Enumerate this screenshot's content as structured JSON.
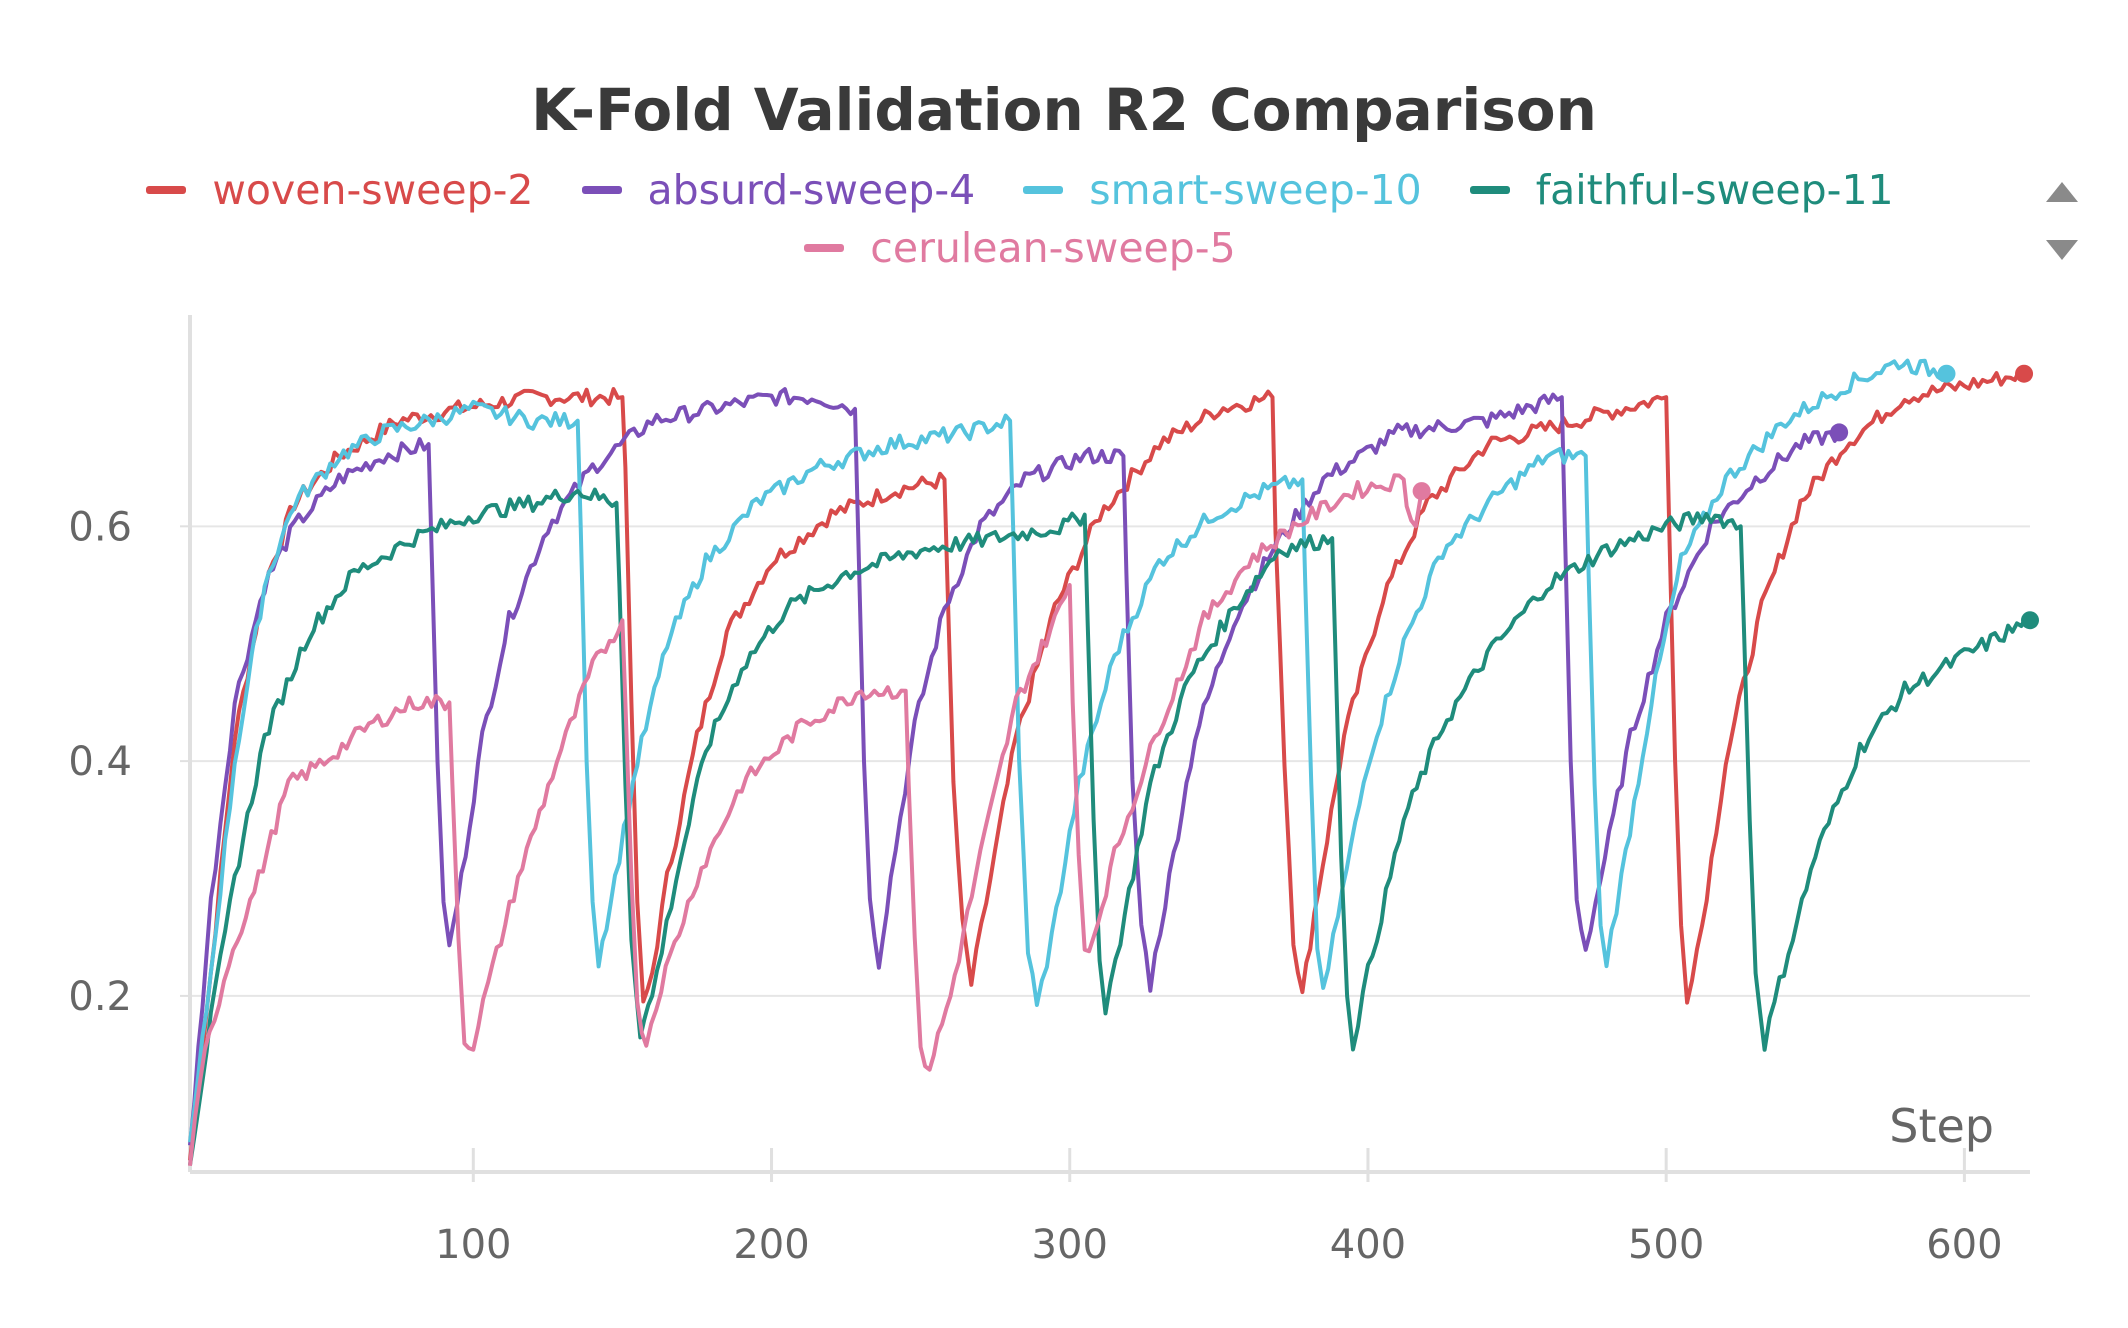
{
  "title": "K-Fold Validation R2 Comparison",
  "legend": [
    {
      "name": "woven-sweep-2",
      "color": "#d84a4a"
    },
    {
      "name": "absurd-sweep-4",
      "color": "#7b4fb8"
    },
    {
      "name": "smart-sweep-10",
      "color": "#55c3dd"
    },
    {
      "name": "faithful-sweep-11",
      "color": "#1f8c7c"
    },
    {
      "name": "cerulean-sweep-5",
      "color": "#e07aa0"
    }
  ],
  "chart_data": {
    "type": "line",
    "title": "K-Fold Validation R2 Comparison",
    "xlabel": "Step",
    "ylabel": "",
    "xlim": [
      5,
      622
    ],
    "ylim": [
      0.05,
      0.78
    ],
    "x_ticks": [
      100,
      200,
      300,
      400,
      500,
      600
    ],
    "y_ticks": [
      0.2,
      0.4,
      0.6
    ],
    "x_tick_labels": [
      "100",
      "200",
      "300",
      "400",
      "500",
      "600"
    ],
    "y_tick_labels": [
      "0.2",
      "0.4",
      "0.6"
    ],
    "grid": true,
    "legend_position": "top",
    "series": [
      {
        "name": "woven-sweep-2",
        "color": "#d84a4a",
        "end_marker": true,
        "points": [
          [
            5,
            0.06
          ],
          [
            12,
            0.22
          ],
          [
            20,
            0.42
          ],
          [
            30,
            0.55
          ],
          [
            40,
            0.62
          ],
          [
            55,
            0.66
          ],
          [
            75,
            0.69
          ],
          [
            95,
            0.7
          ],
          [
            120,
            0.71
          ],
          [
            150,
            0.71
          ],
          [
            151,
            0.65
          ],
          [
            153,
            0.45
          ],
          [
            155,
            0.28
          ],
          [
            157,
            0.19
          ],
          [
            160,
            0.22
          ],
          [
            165,
            0.3
          ],
          [
            175,
            0.42
          ],
          [
            185,
            0.51
          ],
          [
            200,
            0.57
          ],
          [
            220,
            0.61
          ],
          [
            240,
            0.63
          ],
          [
            258,
            0.64
          ],
          [
            259,
            0.55
          ],
          [
            261,
            0.38
          ],
          [
            264,
            0.26
          ],
          [
            267,
            0.21
          ],
          [
            272,
            0.28
          ],
          [
            282,
            0.42
          ],
          [
            295,
            0.53
          ],
          [
            310,
            0.61
          ],
          [
            330,
            0.67
          ],
          [
            350,
            0.7
          ],
          [
            368,
            0.71
          ],
          [
            369,
            0.6
          ],
          [
            372,
            0.4
          ],
          [
            375,
            0.25
          ],
          [
            378,
            0.2
          ],
          [
            382,
            0.27
          ],
          [
            392,
            0.42
          ],
          [
            405,
            0.54
          ],
          [
            420,
            0.62
          ],
          [
            440,
            0.67
          ],
          [
            470,
            0.69
          ],
          [
            500,
            0.71
          ],
          [
            501,
            0.6
          ],
          [
            503,
            0.4
          ],
          [
            505,
            0.26
          ],
          [
            507,
            0.2
          ],
          [
            512,
            0.26
          ],
          [
            520,
            0.4
          ],
          [
            532,
            0.53
          ],
          [
            545,
            0.62
          ],
          [
            560,
            0.67
          ],
          [
            580,
            0.71
          ],
          [
            600,
            0.72
          ],
          [
            620,
            0.73
          ]
        ]
      },
      {
        "name": "absurd-sweep-4",
        "color": "#7b4fb8",
        "end_marker": true,
        "points": [
          [
            5,
            0.07
          ],
          [
            12,
            0.28
          ],
          [
            20,
            0.45
          ],
          [
            30,
            0.55
          ],
          [
            40,
            0.6
          ],
          [
            55,
            0.64
          ],
          [
            70,
            0.66
          ],
          [
            85,
            0.67
          ],
          [
            86,
            0.58
          ],
          [
            88,
            0.4
          ],
          [
            90,
            0.28
          ],
          [
            92,
            0.24
          ],
          [
            96,
            0.3
          ],
          [
            103,
            0.42
          ],
          [
            112,
            0.52
          ],
          [
            125,
            0.6
          ],
          [
            140,
            0.65
          ],
          [
            160,
            0.69
          ],
          [
            180,
            0.7
          ],
          [
            200,
            0.71
          ],
          [
            215,
            0.71
          ],
          [
            228,
            0.7
          ],
          [
            229,
            0.6
          ],
          [
            231,
            0.4
          ],
          [
            233,
            0.28
          ],
          [
            236,
            0.23
          ],
          [
            240,
            0.3
          ],
          [
            248,
            0.43
          ],
          [
            258,
            0.53
          ],
          [
            270,
            0.6
          ],
          [
            285,
            0.64
          ],
          [
            305,
            0.66
          ],
          [
            318,
            0.66
          ],
          [
            319,
            0.56
          ],
          [
            321,
            0.38
          ],
          [
            324,
            0.26
          ],
          [
            327,
            0.21
          ],
          [
            332,
            0.28
          ],
          [
            342,
            0.42
          ],
          [
            355,
            0.52
          ],
          [
            368,
            0.58
          ],
          [
            385,
            0.64
          ],
          [
            410,
            0.68
          ],
          [
            440,
            0.69
          ],
          [
            465,
            0.71
          ],
          [
            466,
            0.6
          ],
          [
            468,
            0.4
          ],
          [
            470,
            0.28
          ],
          [
            473,
            0.24
          ],
          [
            478,
            0.3
          ],
          [
            488,
            0.42
          ],
          [
            500,
            0.52
          ],
          [
            515,
            0.6
          ],
          [
            530,
            0.64
          ],
          [
            545,
            0.67
          ],
          [
            558,
            0.68
          ]
        ]
      },
      {
        "name": "smart-sweep-10",
        "color": "#55c3dd",
        "end_marker": true,
        "points": [
          [
            5,
            0.07
          ],
          [
            12,
            0.22
          ],
          [
            20,
            0.4
          ],
          [
            30,
            0.55
          ],
          [
            40,
            0.62
          ],
          [
            55,
            0.66
          ],
          [
            70,
            0.68
          ],
          [
            85,
            0.69
          ],
          [
            100,
            0.7
          ],
          [
            120,
            0.69
          ],
          [
            135,
            0.69
          ],
          [
            136,
            0.6
          ],
          [
            138,
            0.4
          ],
          [
            140,
            0.28
          ],
          [
            142,
            0.23
          ],
          [
            146,
            0.28
          ],
          [
            155,
            0.4
          ],
          [
            165,
            0.5
          ],
          [
            178,
            0.57
          ],
          [
            195,
            0.62
          ],
          [
            215,
            0.65
          ],
          [
            240,
            0.67
          ],
          [
            265,
            0.68
          ],
          [
            280,
            0.69
          ],
          [
            281,
            0.6
          ],
          [
            283,
            0.4
          ],
          [
            286,
            0.24
          ],
          [
            289,
            0.19
          ],
          [
            294,
            0.25
          ],
          [
            303,
            0.38
          ],
          [
            315,
            0.49
          ],
          [
            330,
            0.57
          ],
          [
            348,
            0.61
          ],
          [
            365,
            0.63
          ],
          [
            378,
            0.64
          ],
          [
            379,
            0.55
          ],
          [
            381,
            0.38
          ],
          [
            383,
            0.24
          ],
          [
            385,
            0.2
          ],
          [
            390,
            0.27
          ],
          [
            400,
            0.4
          ],
          [
            412,
            0.5
          ],
          [
            425,
            0.58
          ],
          [
            445,
            0.63
          ],
          [
            460,
            0.66
          ],
          [
            473,
            0.66
          ],
          [
            474,
            0.56
          ],
          [
            476,
            0.38
          ],
          [
            478,
            0.26
          ],
          [
            480,
            0.23
          ],
          [
            485,
            0.3
          ],
          [
            495,
            0.45
          ],
          [
            505,
            0.57
          ],
          [
            520,
            0.64
          ],
          [
            540,
            0.69
          ],
          [
            560,
            0.72
          ],
          [
            578,
            0.74
          ],
          [
            594,
            0.73
          ]
        ]
      },
      {
        "name": "faithful-sweep-11",
        "color": "#1f8c7c",
        "end_marker": true,
        "points": [
          [
            5,
            0.06
          ],
          [
            12,
            0.18
          ],
          [
            20,
            0.3
          ],
          [
            30,
            0.42
          ],
          [
            45,
            0.51
          ],
          [
            60,
            0.56
          ],
          [
            80,
            0.59
          ],
          [
            100,
            0.61
          ],
          [
            120,
            0.62
          ],
          [
            135,
            0.63
          ],
          [
            148,
            0.62
          ],
          [
            149,
            0.55
          ],
          [
            151,
            0.38
          ],
          [
            153,
            0.25
          ],
          [
            156,
            0.17
          ],
          [
            160,
            0.2
          ],
          [
            168,
            0.3
          ],
          [
            178,
            0.41
          ],
          [
            190,
            0.48
          ],
          [
            205,
            0.53
          ],
          [
            225,
            0.56
          ],
          [
            250,
            0.58
          ],
          [
            275,
            0.59
          ],
          [
            298,
            0.6
          ],
          [
            305,
            0.61
          ],
          [
            306,
            0.52
          ],
          [
            308,
            0.35
          ],
          [
            310,
            0.23
          ],
          [
            312,
            0.19
          ],
          [
            317,
            0.25
          ],
          [
            327,
            0.38
          ],
          [
            340,
            0.47
          ],
          [
            355,
            0.53
          ],
          [
            370,
            0.58
          ],
          [
            388,
            0.59
          ],
          [
            389,
            0.5
          ],
          [
            391,
            0.32
          ],
          [
            393,
            0.2
          ],
          [
            395,
            0.16
          ],
          [
            400,
            0.22
          ],
          [
            412,
            0.35
          ],
          [
            425,
            0.43
          ],
          [
            440,
            0.49
          ],
          [
            460,
            0.55
          ],
          [
            480,
            0.58
          ],
          [
            500,
            0.6
          ],
          [
            515,
            0.61
          ],
          [
            525,
            0.6
          ],
          [
            526,
            0.52
          ],
          [
            528,
            0.35
          ],
          [
            530,
            0.22
          ],
          [
            533,
            0.16
          ],
          [
            538,
            0.21
          ],
          [
            550,
            0.32
          ],
          [
            565,
            0.41
          ],
          [
            580,
            0.46
          ],
          [
            600,
            0.49
          ],
          [
            622,
            0.52
          ]
        ]
      },
      {
        "name": "cerulean-sweep-5",
        "color": "#e07aa0",
        "end_marker": true,
        "points": [
          [
            5,
            0.06
          ],
          [
            10,
            0.15
          ],
          [
            18,
            0.23
          ],
          [
            28,
            0.3
          ],
          [
            38,
            0.38
          ],
          [
            50,
            0.4
          ],
          [
            65,
            0.43
          ],
          [
            80,
            0.45
          ],
          [
            92,
            0.45
          ],
          [
            93,
            0.38
          ],
          [
            95,
            0.25
          ],
          [
            97,
            0.16
          ],
          [
            100,
            0.16
          ],
          [
            105,
            0.21
          ],
          [
            115,
            0.3
          ],
          [
            128,
            0.4
          ],
          [
            140,
            0.48
          ],
          [
            150,
            0.52
          ],
          [
            151,
            0.45
          ],
          [
            153,
            0.3
          ],
          [
            155,
            0.19
          ],
          [
            158,
            0.16
          ],
          [
            163,
            0.21
          ],
          [
            175,
            0.3
          ],
          [
            190,
            0.38
          ],
          [
            210,
            0.43
          ],
          [
            230,
            0.46
          ],
          [
            245,
            0.46
          ],
          [
            246,
            0.38
          ],
          [
            248,
            0.25
          ],
          [
            250,
            0.15
          ],
          [
            253,
            0.14
          ],
          [
            260,
            0.2
          ],
          [
            270,
            0.32
          ],
          [
            282,
            0.45
          ],
          [
            295,
            0.52
          ],
          [
            300,
            0.55
          ],
          [
            301,
            0.45
          ],
          [
            303,
            0.32
          ],
          [
            305,
            0.24
          ],
          [
            308,
            0.25
          ],
          [
            315,
            0.32
          ],
          [
            330,
            0.43
          ],
          [
            345,
            0.52
          ],
          [
            360,
            0.57
          ],
          [
            375,
            0.6
          ],
          [
            395,
            0.63
          ],
          [
            412,
            0.64
          ],
          [
            413,
            0.62
          ],
          [
            416,
            0.6
          ],
          [
            418,
            0.63
          ]
        ]
      }
    ]
  }
}
